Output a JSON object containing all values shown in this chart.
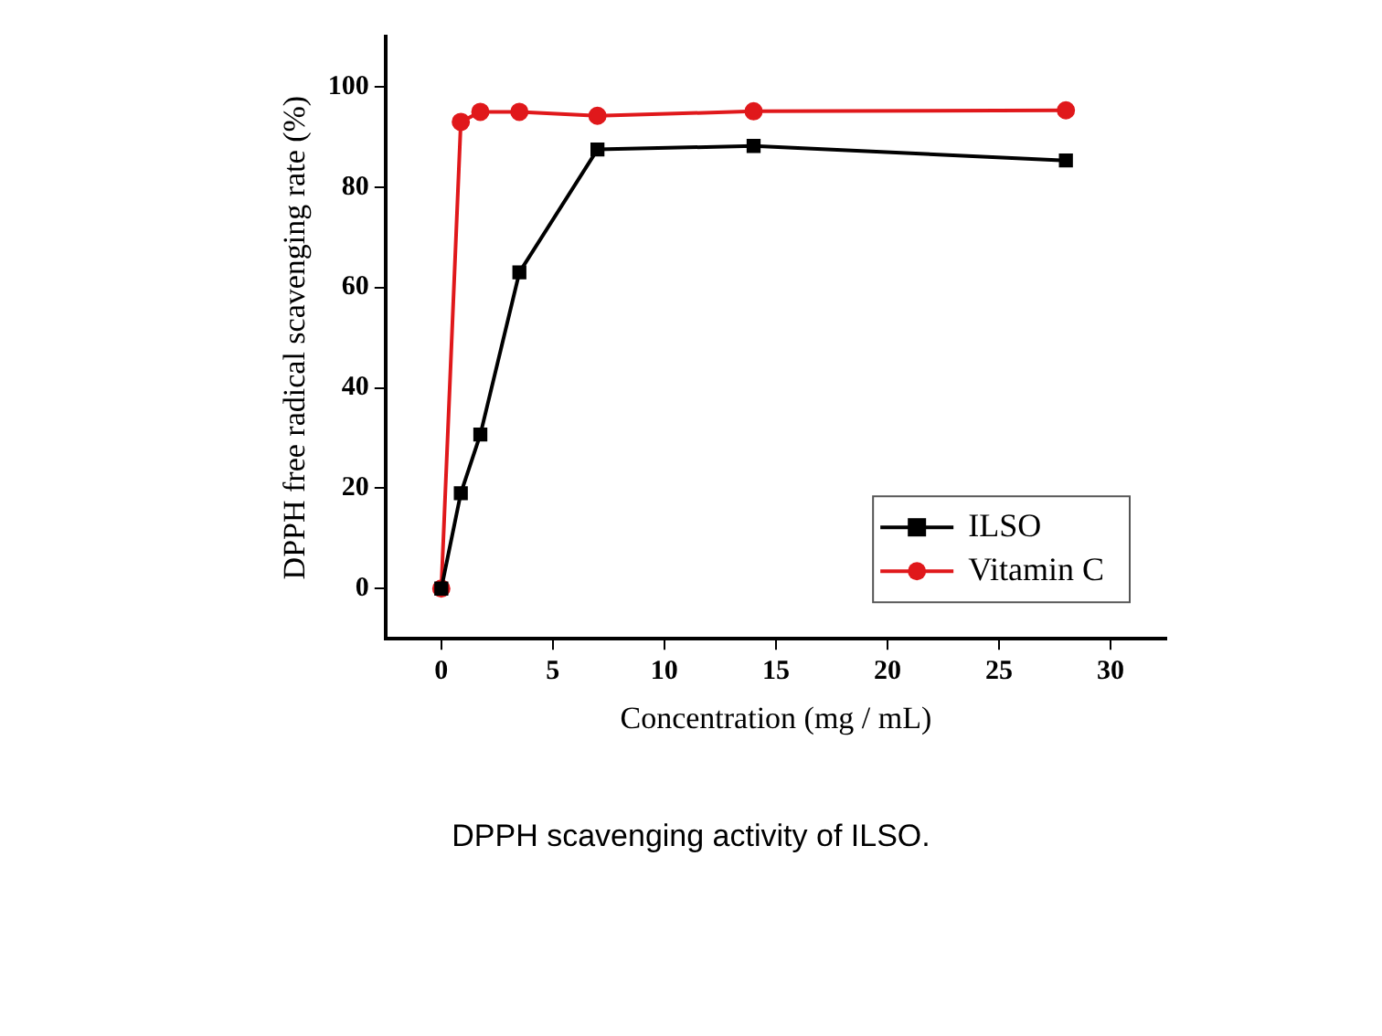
{
  "chart_data": {
    "type": "line",
    "xlabel": "Concentration (mg / mL)",
    "ylabel": "DPPH free radical scavenging rate (%)",
    "annotations": [
      "DPPH scavenging activity of ILSO."
    ],
    "x": [
      0,
      0.875,
      1.75,
      3.5,
      7,
      14,
      28
    ],
    "series": [
      {
        "name": "ILSO",
        "color": "#000000",
        "marker": "square",
        "values": [
          0,
          19,
          30.7,
          63,
          87.5,
          88.2,
          85.3
        ]
      },
      {
        "name": "Vitamin C",
        "color": "#e0181b",
        "marker": "circle",
        "values": [
          0,
          93,
          95,
          95,
          94.2,
          95.1,
          95.3
        ]
      }
    ],
    "xlim": [
      -2.5,
      32.5
    ],
    "xticks": [
      0,
      5,
      10,
      15,
      20,
      25,
      30
    ],
    "ylim": [
      -10,
      110
    ],
    "yticks": [
      0,
      20,
      40,
      60,
      80,
      100
    ],
    "grid": false,
    "legend": "bottom right",
    "line_style": "solid"
  }
}
